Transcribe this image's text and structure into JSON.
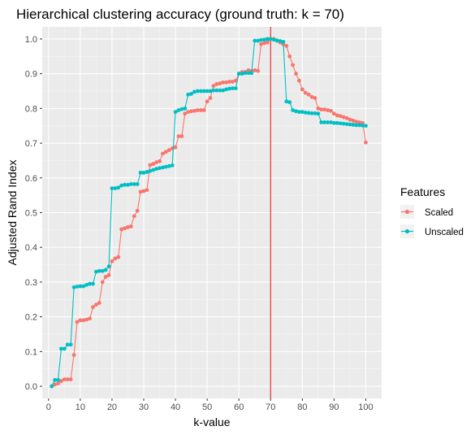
{
  "chart_data": {
    "type": "line",
    "title": "Hierarchical clustering accuracy (ground truth: k = 70)",
    "xlabel": "k-value",
    "ylabel": "Adjusted Rand Index",
    "xlim": [
      -2,
      105
    ],
    "ylim": [
      -0.035,
      1.035
    ],
    "x_ticks": [
      0,
      10,
      20,
      30,
      40,
      50,
      60,
      70,
      80,
      90,
      100
    ],
    "y_ticks": [
      0.0,
      0.1,
      0.2,
      0.3,
      0.4,
      0.5,
      0.6,
      0.7,
      0.8,
      0.9,
      1.0
    ],
    "y_tick_labels": [
      "0.0",
      "0.1",
      "0.2",
      "0.3",
      "0.4",
      "0.5",
      "0.6",
      "0.7",
      "0.8",
      "0.9",
      "1.0"
    ],
    "grid": true,
    "legend": {
      "title": "Features",
      "position": "right"
    },
    "vline": {
      "x": 70,
      "color": "#e41a1c"
    },
    "x": [
      1,
      2,
      3,
      4,
      5,
      6,
      7,
      8,
      9,
      10,
      11,
      12,
      13,
      14,
      15,
      16,
      17,
      18,
      19,
      20,
      21,
      22,
      23,
      24,
      25,
      26,
      27,
      28,
      29,
      30,
      31,
      32,
      33,
      34,
      35,
      36,
      37,
      38,
      39,
      40,
      41,
      42,
      43,
      44,
      45,
      46,
      47,
      48,
      49,
      50,
      51,
      52,
      53,
      54,
      55,
      56,
      57,
      58,
      59,
      60,
      61,
      62,
      63,
      64,
      65,
      66,
      67,
      68,
      69,
      70,
      71,
      72,
      73,
      74,
      75,
      76,
      77,
      78,
      79,
      80,
      81,
      82,
      83,
      84,
      85,
      86,
      87,
      88,
      89,
      90,
      91,
      92,
      93,
      94,
      95,
      96,
      97,
      98,
      99,
      100
    ],
    "series": [
      {
        "name": "Scaled",
        "color": "#f8766d",
        "values": [
          0.0,
          0.005,
          0.008,
          0.015,
          0.02,
          0.02,
          0.02,
          0.09,
          0.185,
          0.19,
          0.19,
          0.192,
          0.195,
          0.228,
          0.235,
          0.24,
          0.3,
          0.315,
          0.32,
          0.36,
          0.368,
          0.372,
          0.452,
          0.455,
          0.458,
          0.46,
          0.49,
          0.505,
          0.56,
          0.562,
          0.565,
          0.637,
          0.64,
          0.645,
          0.648,
          0.67,
          0.675,
          0.68,
          0.685,
          0.688,
          0.72,
          0.72,
          0.785,
          0.79,
          0.792,
          0.793,
          0.795,
          0.795,
          0.795,
          0.82,
          0.83,
          0.865,
          0.87,
          0.872,
          0.875,
          0.875,
          0.877,
          0.877,
          0.88,
          0.9,
          0.905,
          0.905,
          0.91,
          0.908,
          0.91,
          0.908,
          0.985,
          0.988,
          0.99,
          1.0,
          1.0,
          0.995,
          0.99,
          0.985,
          0.98,
          0.95,
          0.925,
          0.9,
          0.88,
          0.855,
          0.845,
          0.84,
          0.833,
          0.83,
          0.8,
          0.797,
          0.797,
          0.795,
          0.793,
          0.785,
          0.78,
          0.778,
          0.775,
          0.772,
          0.768,
          0.765,
          0.762,
          0.76,
          0.758,
          0.702
        ]
      },
      {
        "name": "Unscaled",
        "color": "#00bfc4",
        "values": [
          0.0,
          0.018,
          0.018,
          0.108,
          0.108,
          0.12,
          0.12,
          0.285,
          0.287,
          0.288,
          0.288,
          0.292,
          0.295,
          0.295,
          0.33,
          0.332,
          0.332,
          0.335,
          0.345,
          0.57,
          0.57,
          0.572,
          0.578,
          0.58,
          0.58,
          0.582,
          0.582,
          0.582,
          0.615,
          0.615,
          0.617,
          0.62,
          0.623,
          0.626,
          0.628,
          0.63,
          0.632,
          0.634,
          0.636,
          0.79,
          0.795,
          0.798,
          0.8,
          0.84,
          0.842,
          0.848,
          0.85,
          0.85,
          0.85,
          0.85,
          0.85,
          0.852,
          0.852,
          0.852,
          0.852,
          0.855,
          0.857,
          0.858,
          0.858,
          0.9,
          0.9,
          0.902,
          0.902,
          0.902,
          0.995,
          0.995,
          0.997,
          0.998,
          1.0,
          1.0,
          0.998,
          0.996,
          0.994,
          0.992,
          0.82,
          0.818,
          0.795,
          0.792,
          0.79,
          0.79,
          0.788,
          0.787,
          0.786,
          0.786,
          0.785,
          0.76,
          0.76,
          0.76,
          0.76,
          0.758,
          0.758,
          0.757,
          0.756,
          0.755,
          0.754,
          0.753,
          0.752,
          0.752,
          0.751,
          0.75
        ]
      }
    ]
  }
}
